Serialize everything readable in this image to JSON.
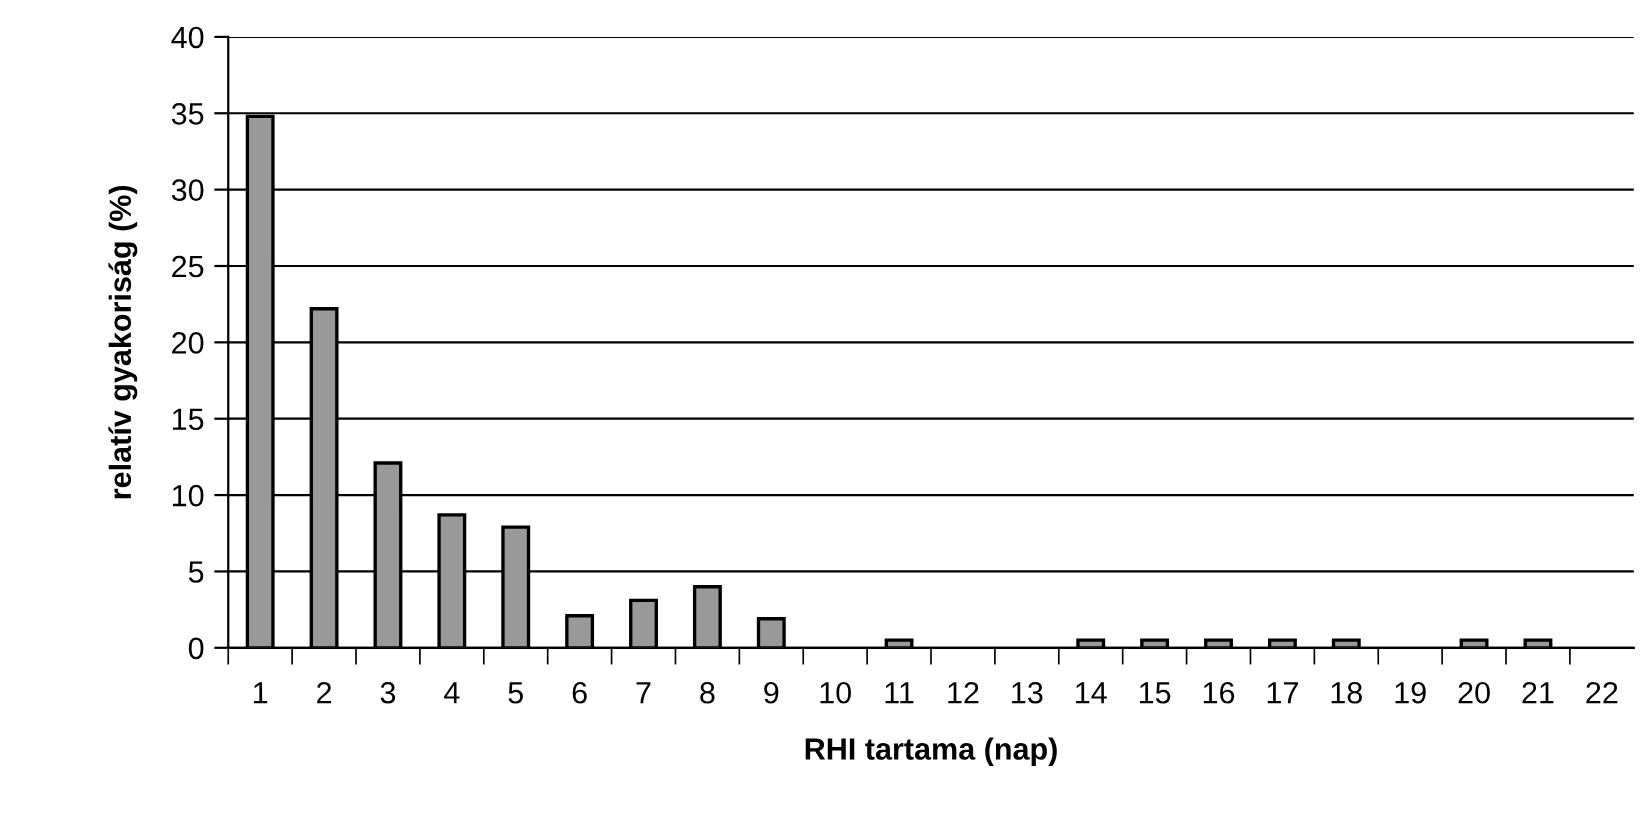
{
  "chart_data": {
    "type": "bar",
    "xlabel": "RHI tartama (nap)",
    "ylabel": "relatív gyakoriság (%)",
    "categories": [
      "1",
      "2",
      "3",
      "4",
      "5",
      "6",
      "7",
      "8",
      "9",
      "10",
      "11",
      "12",
      "13",
      "14",
      "15",
      "16",
      "17",
      "18",
      "19",
      "20",
      "21",
      "22"
    ],
    "values": [
      34.8,
      22.2,
      12.1,
      8.7,
      7.9,
      2.1,
      3.1,
      4.0,
      1.9,
      0,
      0.5,
      0,
      0,
      0.5,
      0.5,
      0.5,
      0.5,
      0.5,
      0,
      0.5,
      0.5,
      0
    ],
    "color": "#999999",
    "ylim": [
      0,
      40
    ],
    "yticks": [
      0,
      5,
      10,
      15,
      20,
      25,
      30,
      35,
      40
    ],
    "grid": "y",
    "legend": false
  }
}
